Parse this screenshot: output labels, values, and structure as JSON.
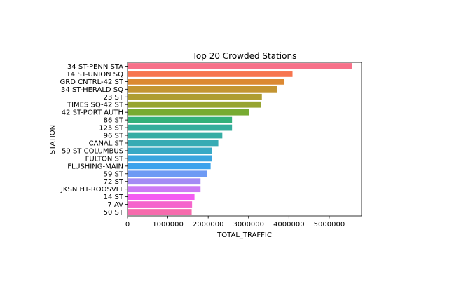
{
  "chart_data": {
    "type": "bar",
    "orientation": "horizontal",
    "title": "Top 20 Crowded Stations",
    "xlabel": "TOTAL_TRAFFIC",
    "ylabel": "STATION",
    "xlim": [
      0,
      5800000
    ],
    "xticks": [
      0,
      1000000,
      2000000,
      3000000,
      4000000,
      5000000
    ],
    "xtick_labels": [
      "0",
      "1000000",
      "2000000",
      "3000000",
      "4000000",
      "5000000"
    ],
    "grid": false,
    "legend": "none",
    "categories": [
      "34 ST-PENN STA",
      "14 ST-UNION SQ",
      "GRD CNTRL-42 ST",
      "34 ST-HERALD SQ",
      "23 ST",
      "TIMES SQ-42 ST",
      "42 ST-PORT AUTH",
      "86 ST",
      "125 ST",
      "96 ST",
      "CANAL ST",
      "59 ST COLUMBUS",
      "FULTON ST",
      "FLUSHING-MAIN",
      "59 ST",
      "72 ST",
      "JKSN HT-ROOSVLT",
      "14 ST",
      "7 AV",
      "50 ST"
    ],
    "values": [
      5560000,
      4090000,
      3890000,
      3700000,
      3330000,
      3310000,
      3020000,
      2590000,
      2590000,
      2350000,
      2250000,
      2100000,
      2100000,
      2060000,
      1970000,
      1810000,
      1810000,
      1660000,
      1600000,
      1590000
    ],
    "colors": [
      "#f77189",
      "#f7754f",
      "#dc8932",
      "#c39532",
      "#ae9d31",
      "#97a431",
      "#77ab31",
      "#33b07a",
      "#35ad9c",
      "#36ada4",
      "#37abb4",
      "#38a9c5",
      "#3aa5df",
      "#3ba3ec",
      "#6e9af4",
      "#a48cf4",
      "#cc7af4",
      "#f45cf2",
      "#f565cc",
      "#f66bad"
    ]
  }
}
